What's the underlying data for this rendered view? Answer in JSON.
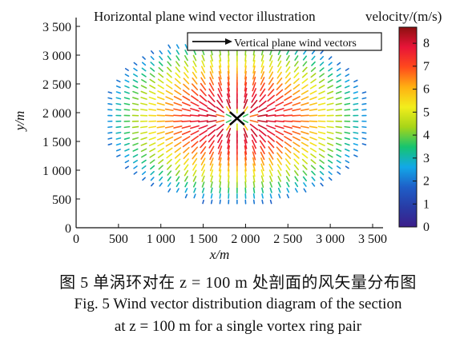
{
  "chart_data": {
    "type": "vector-field",
    "title": "Horizontal plane wind vector illustration",
    "colorbar": {
      "label": "velocity/(m/s)",
      "ticks": [
        0,
        1,
        2,
        3,
        4,
        5,
        6,
        7,
        8
      ],
      "range": [
        0,
        8.7
      ]
    },
    "xlabel": "x/m",
    "ylabel": "y/m",
    "xlim": [
      0,
      3500
    ],
    "ylim": [
      0,
      3500
    ],
    "xticks": [
      "0",
      "500",
      "1 000",
      "1 500",
      "2 000",
      "2 500",
      "3 000",
      "3 500"
    ],
    "yticks": [
      "0",
      "500",
      "1 000",
      "1 500",
      "2 000",
      "2 500",
      "3 000",
      "3 500"
    ],
    "legend": {
      "label": "Vertical plane wind vectors",
      "position": "top-right"
    },
    "center_marker": {
      "x": 1900,
      "y": 1900,
      "symbol": "X"
    },
    "field": {
      "grid_x_range": [
        300,
        3400
      ],
      "grid_y_range": [
        250,
        3200
      ],
      "grid_spacing": 100,
      "extent_rx": 1600,
      "extent_ry": 1500,
      "core_radius": 260,
      "peak_speed": 8.6
    }
  },
  "captions": {
    "chinese": "图 5  单涡环对在 z = 100 m 处剖面的风矢量分布图",
    "english_line1": "Fig. 5   Wind vector distribution diagram of the section",
    "english_line2": "at z = 100 m for a single vortex ring pair"
  },
  "colors": {
    "colormap": [
      "#3c1e8a",
      "#283ca6",
      "#1e5fc8",
      "#12a8e8",
      "#16c470",
      "#a6d518",
      "#f2ee1c",
      "#ffb012",
      "#ff4a1c",
      "#e81438",
      "#8c1010"
    ],
    "axis": "#111111"
  }
}
